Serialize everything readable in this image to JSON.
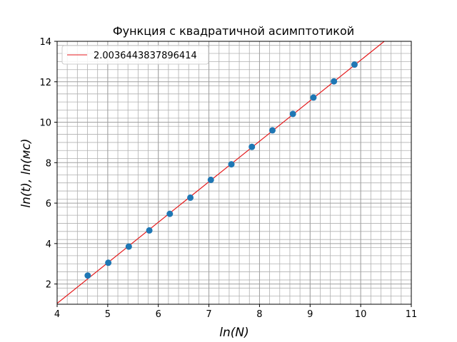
{
  "chart_data": {
    "type": "scatter",
    "title": "Функция с квадратичной асимптотикой",
    "xlabel": "ln(N)",
    "ylabel": "ln(t), ln(мс)",
    "xlim": [
      4,
      11
    ],
    "ylim": [
      1,
      14
    ],
    "xticks": [
      4,
      5,
      6,
      7,
      8,
      9,
      10,
      11
    ],
    "yticks": [
      2,
      4,
      6,
      8,
      10,
      12,
      14
    ],
    "grid": true,
    "minor_grid": true,
    "legend_position": "upper-left",
    "series": [
      {
        "kind": "points",
        "color": "#1f77b4",
        "x": [
          4.605,
          5.011,
          5.416,
          5.822,
          6.227,
          6.633,
          7.038,
          7.444,
          7.849,
          8.255,
          8.66,
          9.066,
          9.471,
          9.877
        ],
        "y": [
          2.42,
          3.05,
          3.85,
          4.65,
          5.47,
          6.27,
          7.15,
          7.92,
          8.78,
          9.6,
          10.41,
          11.22,
          12.02,
          12.85
        ]
      },
      {
        "kind": "line",
        "name": "2.0036443837896414",
        "color": "#e41a1c",
        "slope": 2.0036443837896414,
        "intercept": -6.97
      }
    ]
  }
}
